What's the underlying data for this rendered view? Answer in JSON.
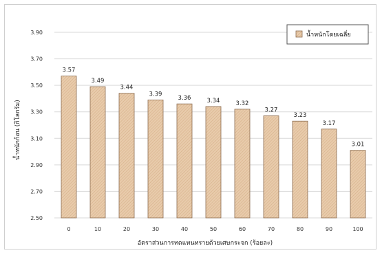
{
  "chart_data": {
    "type": "bar",
    "categories": [
      "0",
      "10",
      "20",
      "30",
      "40",
      "50",
      "60",
      "70",
      "80",
      "90",
      "100"
    ],
    "series": [
      {
        "name": "น้ำหนักโดยเฉลี่ย",
        "values": [
          3.57,
          3.49,
          3.44,
          3.39,
          3.36,
          3.34,
          3.32,
          3.27,
          3.23,
          3.17,
          3.01
        ]
      }
    ],
    "data_labels": [
      "3.57",
      "3.49",
      "3.44",
      "3.39",
      "3.36",
      "3.34",
      "3.32",
      "3.27",
      "3.23",
      "3.17",
      "3.01"
    ],
    "xlabel": "อัตราส่วนการทดแทนทรายด้วยเศษกระจก (ร้อยละ)",
    "ylabel": "น้ำหนักก้อน (กิโลกรัม)",
    "ylim": [
      2.5,
      3.9
    ],
    "yticks": [
      "2.50",
      "2.70",
      "2.90",
      "3.10",
      "3.30",
      "3.50",
      "3.70",
      "3.90"
    ],
    "grid": true,
    "legend_position": "top-right",
    "bar_color": "#e7c9a9",
    "bar_edge_color": "#8a6a4e"
  }
}
